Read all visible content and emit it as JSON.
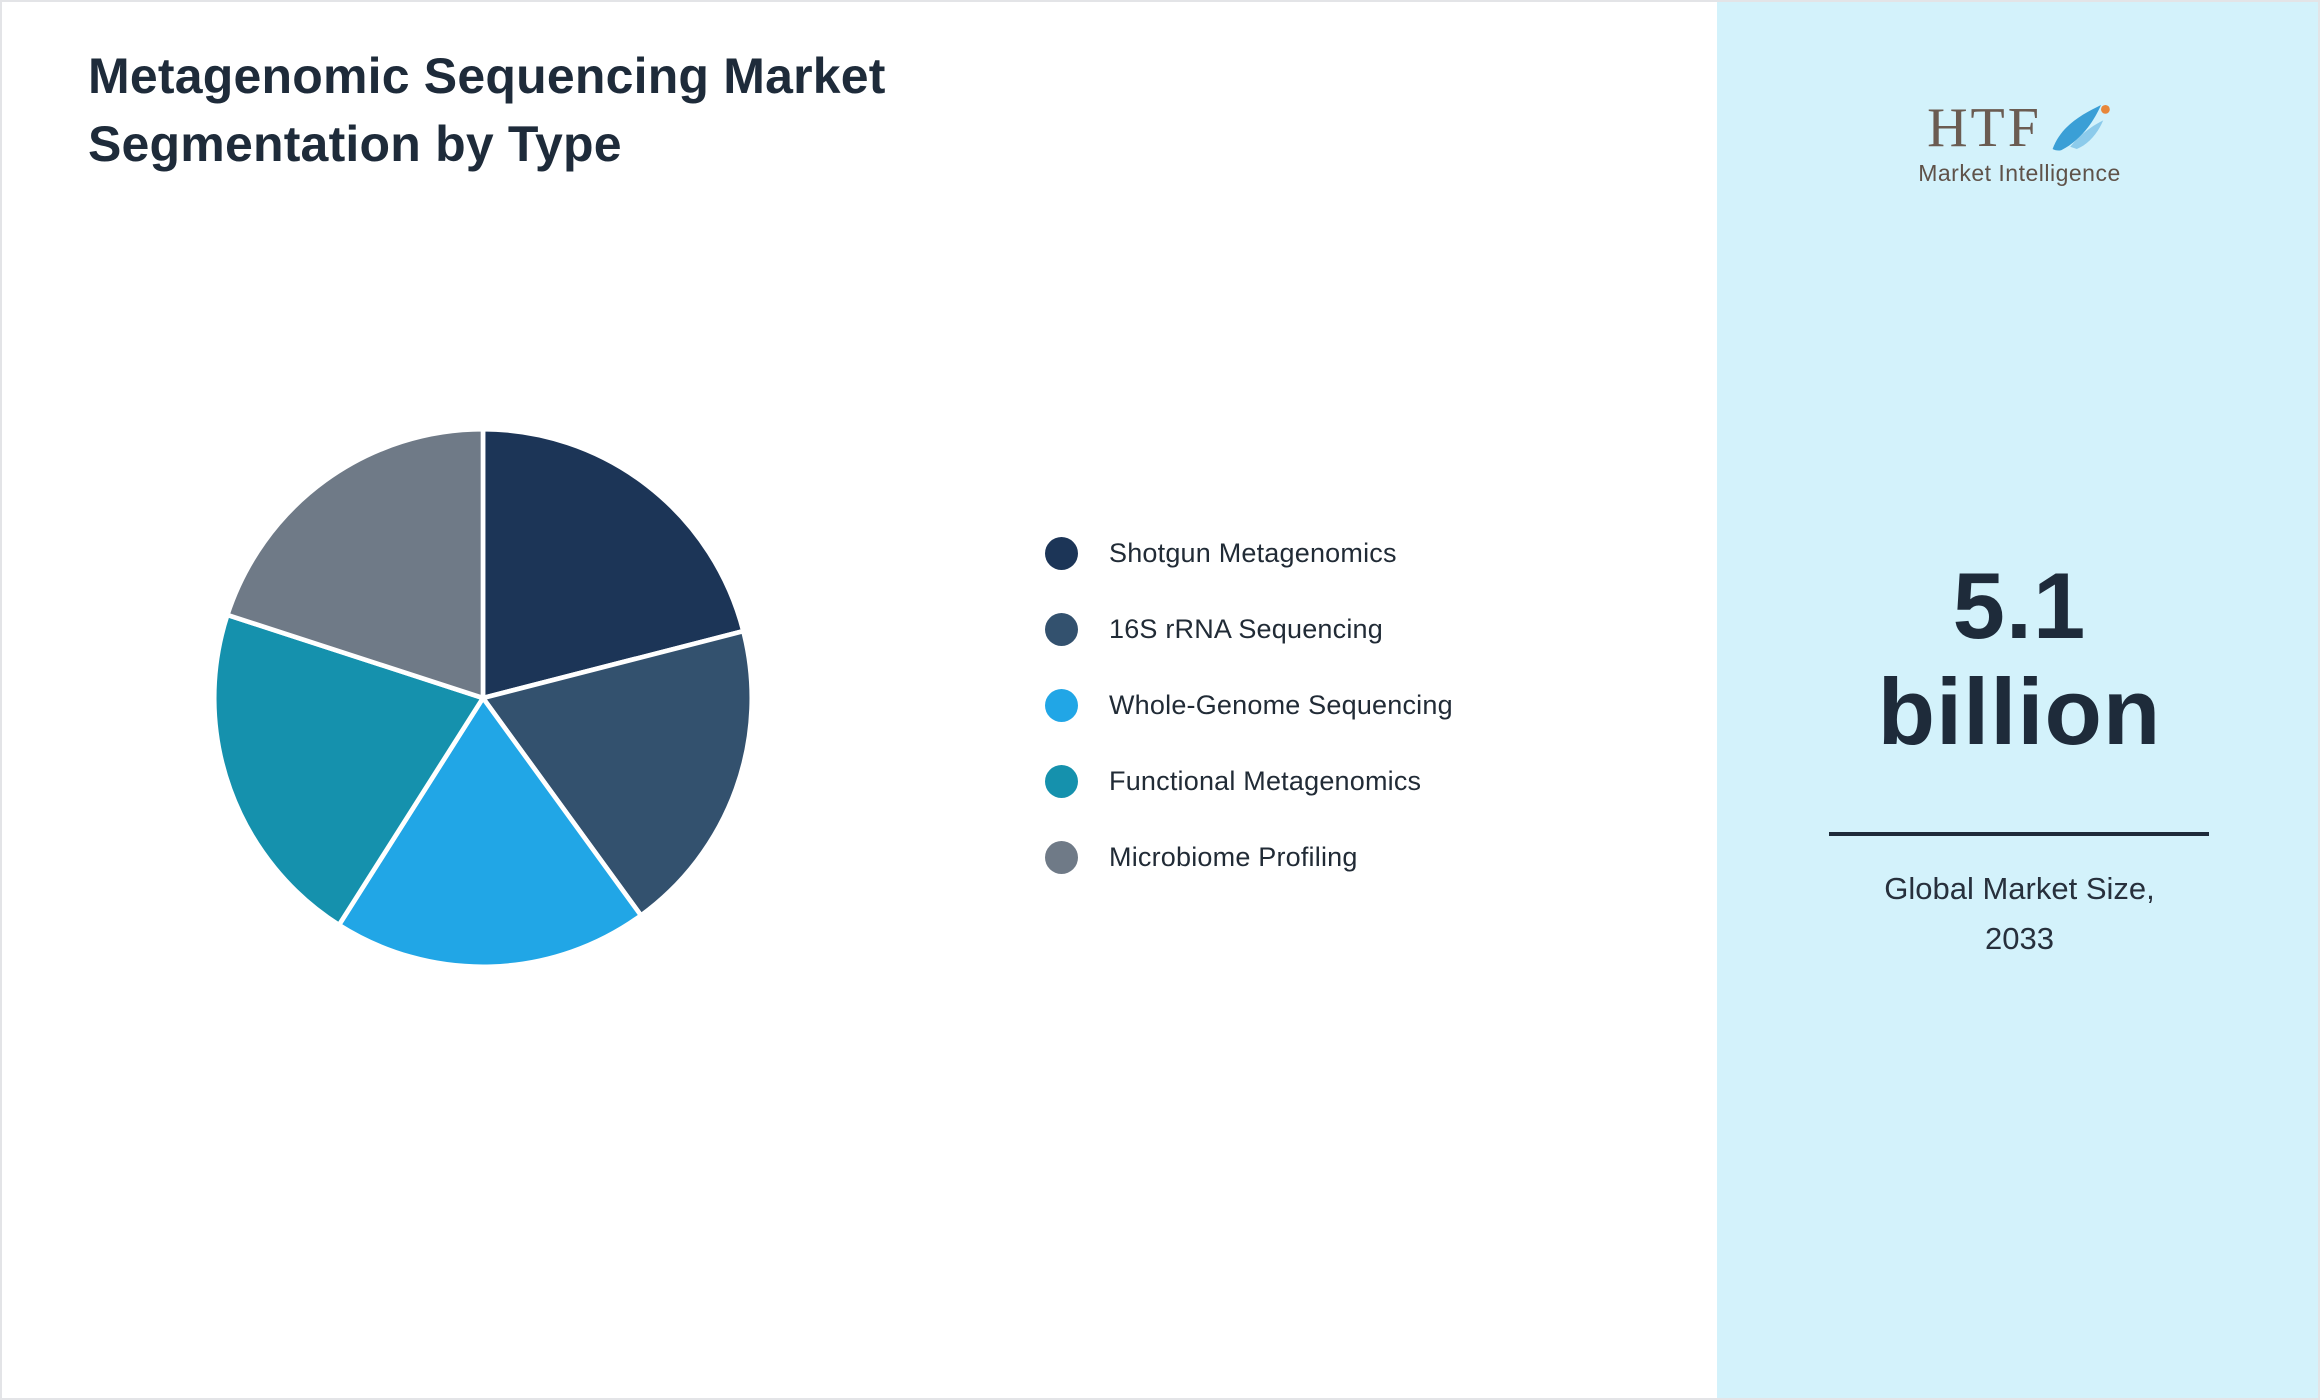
{
  "page": {
    "title_line1": "Metagenomic Sequencing Market",
    "title_line2": "Segmentation by Type"
  },
  "sidebar": {
    "logo_text": "HTF",
    "logo_subtext": "Market Intelligence",
    "value_line1": "5.1",
    "value_line2": "billion",
    "caption_line1": "Global Market Size,",
    "caption_line2": "2033",
    "background_color": "#d3f2fb"
  },
  "chart_data": {
    "type": "pie",
    "title": "Metagenomic Sequencing Market Segmentation by Type",
    "categories": [
      "Shotgun Metagenomics",
      "16S rRNA Sequencing",
      "Whole-Genome Sequencing",
      "Functional Metagenomics",
      "Microbiome Profiling"
    ],
    "values": [
      21,
      19,
      19,
      21,
      20
    ],
    "colors": [
      "#1c3557",
      "#33516e",
      "#21a6e6",
      "#1591ad",
      "#6f7a87"
    ],
    "start_angle_deg": 0,
    "direction": "clockwise",
    "slice_gap_color": "#ffffff",
    "legend_position": "right"
  }
}
